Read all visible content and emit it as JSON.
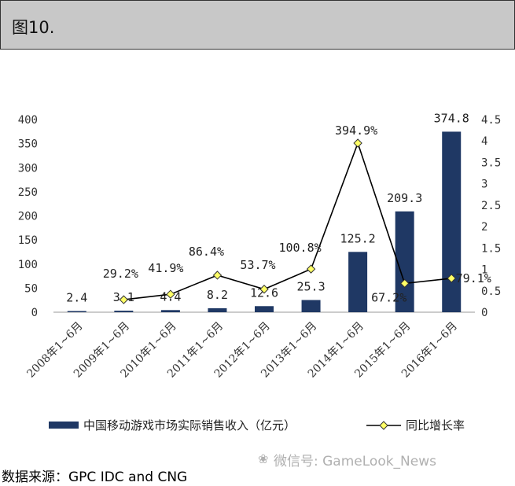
{
  "header": {
    "title": "图10."
  },
  "chart_data": {
    "type": "bar+line",
    "categories": [
      "2008年1~6月",
      "2009年1~6月",
      "2010年1~6月",
      "2011年1~6月",
      "2012年1~6月",
      "2013年1~6月",
      "2014年1~6月",
      "2015年1~6月",
      "2016年1~6月"
    ],
    "series": [
      {
        "name": "中国移动游戏市场实际销售收入（亿元）",
        "type": "bar",
        "axis": "left",
        "values": [
          2.4,
          3.1,
          4.4,
          8.2,
          12.6,
          25.3,
          125.2,
          209.3,
          374.8
        ],
        "labels": [
          "2.4",
          "3.1",
          "4.4",
          "8.2",
          "12.6",
          "25.3",
          "125.2",
          "209.3",
          "374.8"
        ],
        "color": "#1f3864"
      },
      {
        "name": "同比增长率",
        "type": "line",
        "axis": "right",
        "values": [
          null,
          0.292,
          0.419,
          0.864,
          0.537,
          1.008,
          3.949,
          0.672,
          0.791
        ],
        "labels": [
          "",
          "29.2%",
          "41.9%",
          "86.4%",
          "53.7%",
          "100.8%",
          "394.9%",
          "67.2%",
          "79.1%"
        ],
        "color": "#000000",
        "marker_color": "#ffff66"
      }
    ],
    "y_left": {
      "ticks": [
        "400",
        "350",
        "300",
        "250",
        "200",
        "150",
        "100",
        "50",
        "0"
      ],
      "ylim": [
        0,
        400
      ]
    },
    "y_right": {
      "ticks": [
        "4.5",
        "4",
        "3.5",
        "3",
        "2.5",
        "2",
        "1.5",
        "1",
        "0.5",
        "0"
      ],
      "ylim": [
        0,
        4.5
      ]
    },
    "legend_position": "bottom",
    "grid": false
  },
  "footer": {
    "source": "数据来源：GPC IDC and CNG",
    "watermark": "微信号: GameLook_News",
    "watermark_icon": "wechat-icon"
  }
}
